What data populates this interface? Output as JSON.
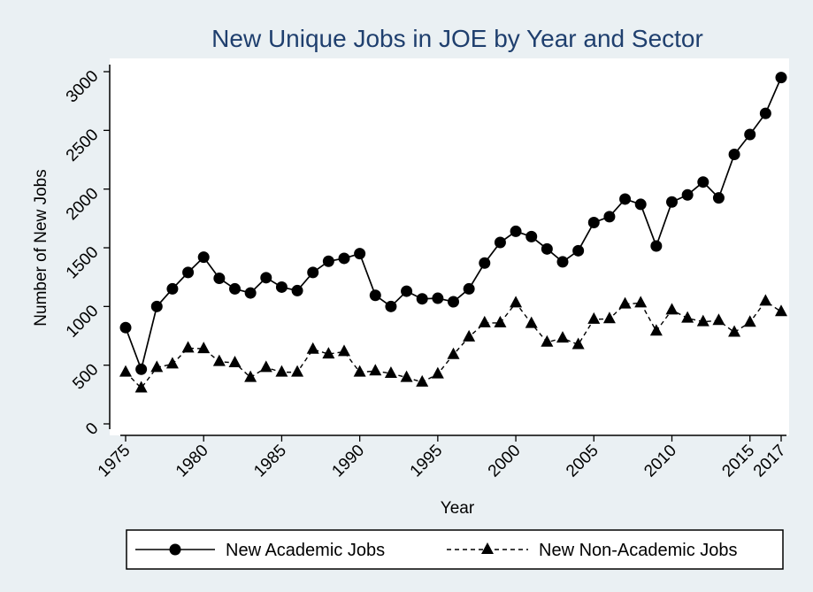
{
  "chart_data": {
    "type": "line",
    "title": "New Unique Jobs in JOE by Year and Sector",
    "xlabel": "Year",
    "ylabel": "Number of New Jobs",
    "xlim": [
      1975,
      2017
    ],
    "ylim": [
      0,
      3000
    ],
    "x_ticks": [
      "1975",
      "1980",
      "1985",
      "1990",
      "1995",
      "2000",
      "2005",
      "2010",
      "2015",
      "2017"
    ],
    "y_ticks": [
      "0",
      "500",
      "1000",
      "1500",
      "2000",
      "2500",
      "3000"
    ],
    "x": [
      1975,
      1976,
      1977,
      1978,
      1979,
      1980,
      1981,
      1982,
      1983,
      1984,
      1985,
      1986,
      1987,
      1988,
      1989,
      1990,
      1991,
      1992,
      1993,
      1994,
      1995,
      1996,
      1997,
      1998,
      1999,
      2000,
      2001,
      2002,
      2003,
      2004,
      2005,
      2006,
      2007,
      2008,
      2009,
      2010,
      2011,
      2012,
      2013,
      2014,
      2015,
      2016,
      2017
    ],
    "series": [
      {
        "name": "New Academic Jobs",
        "marker": "circle",
        "line_style": "solid",
        "values": [
          820,
          465,
          1000,
          1150,
          1290,
          1420,
          1240,
          1150,
          1115,
          1245,
          1165,
          1135,
          1290,
          1385,
          1410,
          1450,
          1095,
          1000,
          1130,
          1065,
          1070,
          1040,
          1150,
          1370,
          1545,
          1640,
          1595,
          1490,
          1380,
          1475,
          1715,
          1765,
          1915,
          1870,
          1515,
          1890,
          1950,
          2060,
          1925,
          2295,
          2465,
          2645,
          2950
        ]
      },
      {
        "name": "New Non-Academic Jobs",
        "marker": "triangle",
        "line_style": "dashed",
        "values": [
          440,
          305,
          480,
          510,
          645,
          640,
          530,
          520,
          395,
          480,
          440,
          440,
          635,
          595,
          615,
          440,
          450,
          430,
          395,
          355,
          425,
          590,
          740,
          860,
          860,
          1030,
          855,
          695,
          730,
          675,
          890,
          895,
          1020,
          1030,
          790,
          970,
          900,
          870,
          880,
          780,
          865,
          1045,
          955
        ]
      }
    ],
    "legend_placement": "bottom",
    "grid": false,
    "colors": {
      "line": "#000000",
      "title": "#1f3f6e",
      "background": "#eaf0f3",
      "plot": "#ffffff"
    }
  }
}
